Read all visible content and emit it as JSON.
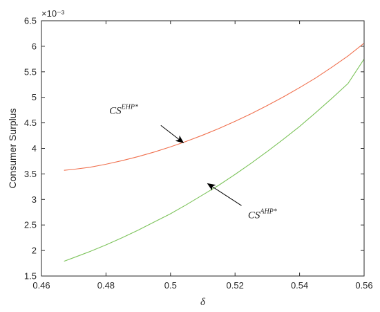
{
  "chart_data": {
    "type": "line",
    "xlabel": "δ",
    "ylabel": "Consumer Surplus",
    "y_exponent": "×10⁻³",
    "xlim": [
      0.46,
      0.56
    ],
    "ylim": [
      1.5,
      6.5
    ],
    "xticks": [
      0.46,
      0.48,
      0.5,
      0.52,
      0.54,
      0.56
    ],
    "xtick_labels": [
      "0.46",
      "0.48",
      "0.5",
      "0.52",
      "0.54",
      "0.56"
    ],
    "yticks": [
      1.5,
      2,
      2.5,
      3,
      3.5,
      4,
      4.5,
      5,
      5.5,
      6,
      6.5
    ],
    "ytick_labels": [
      "1.5",
      "2",
      "2.5",
      "3",
      "3.5",
      "4",
      "4.5",
      "5",
      "5.5",
      "6",
      "6.5"
    ],
    "grid": false,
    "series": [
      {
        "color": "#f0704e",
        "x": [
          0.467,
          0.47,
          0.475,
          0.48,
          0.485,
          0.49,
          0.495,
          0.5,
          0.505,
          0.51,
          0.515,
          0.52,
          0.525,
          0.53,
          0.535,
          0.54,
          0.545,
          0.55,
          0.555,
          0.56
        ],
        "y": [
          3.57,
          3.59,
          3.63,
          3.69,
          3.76,
          3.84,
          3.93,
          4.03,
          4.14,
          4.26,
          4.39,
          4.53,
          4.68,
          4.84,
          5.01,
          5.19,
          5.38,
          5.59,
          5.81,
          6.06
        ]
      },
      {
        "color": "#7cc35a",
        "x": [
          0.467,
          0.47,
          0.475,
          0.48,
          0.485,
          0.49,
          0.495,
          0.5,
          0.505,
          0.51,
          0.515,
          0.52,
          0.525,
          0.53,
          0.535,
          0.54,
          0.545,
          0.55,
          0.555,
          0.56
        ],
        "y": [
          1.79,
          1.86,
          1.98,
          2.11,
          2.25,
          2.4,
          2.56,
          2.72,
          2.9,
          3.09,
          3.28,
          3.49,
          3.71,
          3.94,
          4.18,
          4.43,
          4.7,
          4.98,
          5.27,
          5.75
        ]
      }
    ],
    "annotations": [
      {
        "base": "CS",
        "sup": "EHP*",
        "text_at": [
          0.481,
          4.68
        ],
        "arrow_from": [
          0.497,
          4.45
        ],
        "arrow_to": [
          0.504,
          4.11
        ]
      },
      {
        "base": "CS",
        "sup": "AHP*",
        "text_at": [
          0.524,
          2.63
        ],
        "arrow_from": [
          0.522,
          2.88
        ],
        "arrow_to": [
          0.5115,
          3.31
        ]
      }
    ]
  }
}
